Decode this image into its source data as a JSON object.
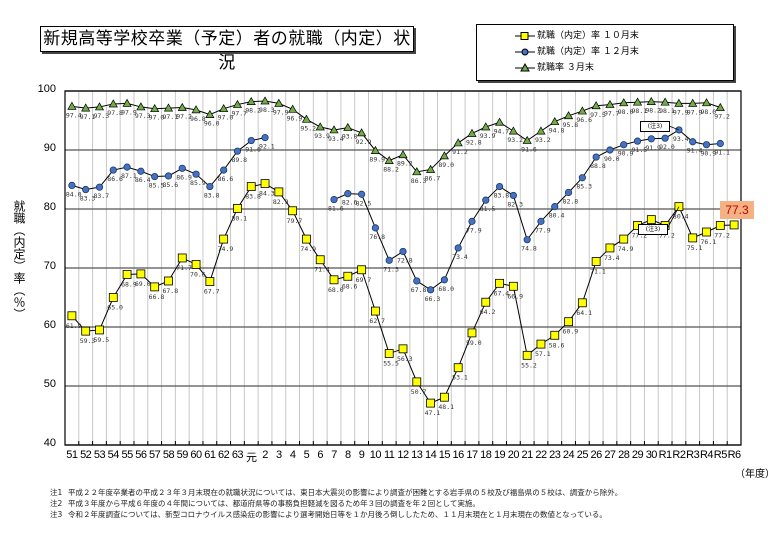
{
  "title": "新規高等学校卒業（予定）者の就職（内定）状況",
  "legend": [
    {
      "label": "就職（内定）率 １０月末",
      "marker": "square",
      "color": "#ffff00"
    },
    {
      "label": "就職（内定）率 １２月末",
      "marker": "diamond",
      "color": "#4472c4"
    },
    {
      "label": "就職率 ３月末",
      "marker": "triangle",
      "color": "#70ad47"
    }
  ],
  "ylabel": "就職（内定）率（％）",
  "xunit": "（年度）",
  "callout_label": "(注3)",
  "highlight_value": "77.3",
  "notes": [
    {
      "key": "注1",
      "text": "平成２２年度卒業者の平成２３年３月末現在の就職状況については、東日本大震災の影響により調査が困難とする岩手県の５校及び福島県の５校は、調査から除外。"
    },
    {
      "key": "注2",
      "text": "平成３年度から平成６年度の４年間については、都道府県等の事務負担軽減を図るため年３回の調査を年２回として実施。"
    },
    {
      "key": "注3",
      "text": "令和２年度調査については、新型コロナウイルス感染症の影響により選考開始日等を１か月後ろ倒ししたため、１１月末現在と１月末現在の数値となっている。"
    }
  ],
  "chart_data": {
    "type": "line",
    "title": "新規高等学校卒業（予定）者の就職（内定）状況",
    "xlabel": "（年度）",
    "ylabel": "就職（内定）率（％）",
    "ylim": [
      40,
      100
    ],
    "yticks": [
      40,
      50,
      60,
      70,
      80,
      90,
      100
    ],
    "grid": true,
    "legend_position": "top-right",
    "categories": [
      "51",
      "52",
      "53",
      "54",
      "55",
      "56",
      "57",
      "58",
      "59",
      "60",
      "61",
      "62",
      "63",
      "元",
      "2",
      "3",
      "4",
      "5",
      "6",
      "7",
      "8",
      "9",
      "10",
      "11",
      "12",
      "13",
      "14",
      "15",
      "16",
      "17",
      "18",
      "19",
      "20",
      "21",
      "22",
      "23",
      "24",
      "25",
      "26",
      "27",
      "28",
      "29",
      "30",
      "R1",
      "R2",
      "R3",
      "R4",
      "R5",
      "R6"
    ],
    "series": [
      {
        "name": "就職（内定）率 １０月末",
        "marker": "square",
        "color": "#ffff00",
        "values": [
          61.9,
          59.3,
          59.5,
          65.0,
          68.9,
          69.0,
          66.8,
          67.8,
          71.7,
          70.6,
          67.7,
          74.9,
          80.1,
          83.8,
          84.3,
          82.9,
          79.7,
          74.9,
          71.4,
          68.0,
          68.6,
          69.7,
          62.7,
          55.5,
          56.3,
          50.7,
          47.1,
          48.1,
          53.1,
          59.0,
          64.2,
          67.4,
          66.9,
          55.2,
          57.1,
          58.6,
          60.9,
          64.1,
          71.1,
          73.4,
          74.9,
          77.2,
          78.2,
          77.2,
          80.4,
          75.1,
          76.1,
          77.2,
          77.3
        ]
      },
      {
        "name": "就職（内定）率 １２月末",
        "marker": "diamond",
        "color": "#4472c4",
        "values": [
          84.0,
          83.3,
          83.7,
          86.6,
          87.1,
          86.4,
          85.5,
          85.6,
          86.9,
          85.9,
          83.8,
          86.6,
          89.8,
          91.6,
          92.1,
          null,
          null,
          null,
          null,
          81.6,
          82.6,
          82.5,
          76.8,
          71.3,
          72.8,
          67.8,
          66.3,
          68.0,
          73.4,
          77.9,
          81.5,
          83.8,
          82.3,
          74.8,
          77.9,
          80.4,
          82.8,
          85.3,
          88.8,
          90.0,
          90.9,
          91.5,
          91.9,
          92.0,
          93.4,
          91.4,
          90.9,
          91.1,
          null
        ]
      },
      {
        "name": "就職率 ３月末",
        "marker": "triangle",
        "color": "#70ad47",
        "values": [
          97.4,
          97.1,
          97.3,
          97.8,
          97.9,
          97.3,
          97.0,
          97.1,
          97.2,
          96.8,
          96.0,
          97.0,
          97.7,
          98.2,
          98.3,
          97.9,
          96.9,
          95.2,
          93.9,
          93.4,
          93.8,
          92.9,
          89.9,
          88.2,
          89.2,
          86.3,
          86.7,
          89.0,
          91.2,
          92.8,
          93.9,
          94.7,
          93.2,
          91.6,
          93.2,
          94.8,
          95.8,
          96.6,
          97.5,
          97.7,
          98.0,
          98.1,
          98.2,
          98.1,
          97.9,
          97.9,
          98.0,
          97.2,
          null
        ]
      }
    ],
    "annotations": [
      {
        "text": "(注3)",
        "category": "R2",
        "series": "就職（内定）率 １２月末"
      },
      {
        "text": "(注3)",
        "category": "R2",
        "series": "就職（内定）率 １０月末"
      },
      {
        "text": "77.3",
        "category": "R6",
        "series": "就職（内定）率 １０月末",
        "highlight": "#f4b183"
      }
    ]
  }
}
